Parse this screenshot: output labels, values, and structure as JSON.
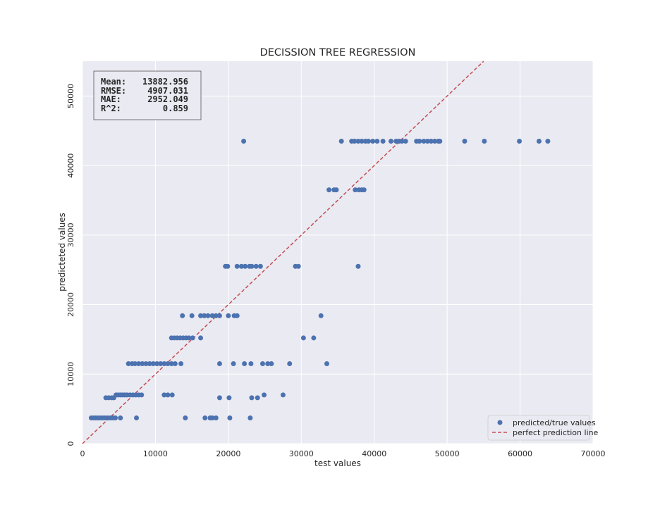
{
  "chart_data": {
    "type": "scatter",
    "title": "DECISSION TREE REGRESSION",
    "xlabel": "test values",
    "ylabel": "predicteted values",
    "xlim": [
      0,
      70000
    ],
    "ylim": [
      0,
      55000
    ],
    "xticks": [
      "0",
      "10000",
      "20000",
      "30000",
      "40000",
      "50000",
      "60000",
      "70000"
    ],
    "yticks": [
      "0",
      "10000",
      "20000",
      "30000",
      "40000",
      "50000"
    ],
    "grid": true,
    "legend_position": "lower-right",
    "stats": {
      "mean_label": "Mean:",
      "mean_value": "13882.956",
      "rmse_label": "RMSE:",
      "rmse_value": "4907.031",
      "mae_label": "MAE:",
      "mae_value": "2952.049",
      "r2_label": "R^2:",
      "r2_value": "0.859"
    },
    "series": [
      {
        "name": "predicted/true values",
        "kind": "scatter",
        "color": "#4c72b0",
        "x": [
          1200,
          1500,
          1800,
          2100,
          2400,
          2700,
          3000,
          3300,
          3600,
          3900,
          4200,
          4500,
          5200,
          7400,
          14100,
          16800,
          17500,
          17800,
          18300,
          20200,
          23000,
          3200,
          3600,
          4000,
          4300,
          4600,
          4900,
          5200,
          5500,
          5800,
          6100,
          6500,
          6900,
          7300,
          7700,
          8100,
          11200,
          11700,
          12300,
          18800,
          20100,
          23200,
          24000,
          24900,
          27500,
          6300,
          6800,
          7200,
          7700,
          8200,
          8700,
          9200,
          9700,
          10200,
          10700,
          11200,
          11700,
          12200,
          12700,
          13500,
          18800,
          20700,
          22200,
          23100,
          24700,
          25400,
          25900,
          28400,
          33500,
          12200,
          12600,
          13000,
          13400,
          13800,
          14200,
          14600,
          15100,
          16200,
          30300,
          31700,
          13700,
          15000,
          16200,
          16700,
          17200,
          17800,
          18300,
          18800,
          20000,
          20800,
          21200,
          32700,
          19600,
          19900,
          21200,
          21800,
          22300,
          22900,
          23200,
          23800,
          24400,
          29200,
          29600,
          37800,
          33800,
          34500,
          34800,
          37400,
          37900,
          38300,
          38600,
          22100,
          35500,
          36900,
          37300,
          37800,
          38300,
          38800,
          39200,
          39800,
          40400,
          41200,
          42300,
          43000,
          43400,
          43800,
          44300,
          45800,
          46200,
          46800,
          47300,
          47800,
          48300,
          48800,
          49000,
          52400,
          55100,
          59900,
          62600,
          63800
        ],
        "y": [
          3700,
          3700,
          3700,
          3700,
          3700,
          3700,
          3700,
          3700,
          3700,
          3700,
          3700,
          3700,
          3700,
          3700,
          3700,
          3700,
          3700,
          3700,
          3700,
          3700,
          3700,
          6600,
          6600,
          6600,
          6600,
          7000,
          7000,
          7000,
          7000,
          7000,
          7000,
          7000,
          7000,
          7000,
          7000,
          7000,
          7000,
          7000,
          7000,
          6600,
          6600,
          6600,
          6600,
          7000,
          7000,
          11500,
          11500,
          11500,
          11500,
          11500,
          11500,
          11500,
          11500,
          11500,
          11500,
          11500,
          11500,
          11500,
          11500,
          11500,
          11500,
          11500,
          11500,
          11500,
          11500,
          11500,
          11500,
          11500,
          11500,
          15200,
          15200,
          15200,
          15200,
          15200,
          15200,
          15200,
          15200,
          15200,
          15200,
          15200,
          18400,
          18400,
          18400,
          18400,
          18400,
          18400,
          18400,
          18400,
          18400,
          18400,
          18400,
          18400,
          25500,
          25500,
          25500,
          25500,
          25500,
          25500,
          25500,
          25500,
          25500,
          25500,
          25500,
          25500,
          36500,
          36500,
          36500,
          36500,
          36500,
          36500,
          36500,
          43500,
          43500,
          43500,
          43500,
          43500,
          43500,
          43500,
          43500,
          43500,
          43500,
          43500,
          43500,
          43500,
          43500,
          43500,
          43500,
          43500,
          43500,
          43500,
          43500,
          43500,
          43500,
          43500,
          43500,
          43500,
          43500,
          43500,
          43500,
          43500
        ]
      },
      {
        "name": "perfect prediction line",
        "kind": "line",
        "color": "#c44e52",
        "x": [
          0,
          55000
        ],
        "y": [
          0,
          55000
        ]
      }
    ]
  }
}
